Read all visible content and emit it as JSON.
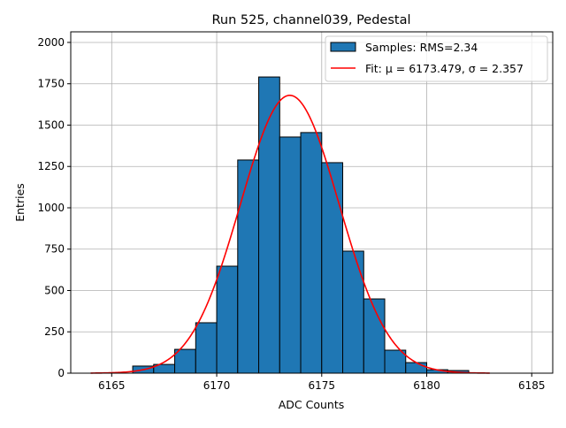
{
  "chart_data": {
    "type": "bar",
    "title": "Run 525, channel039, Pedestal",
    "xlabel": "ADC Counts",
    "ylabel": "Entries",
    "xlim": [
      6163.05,
      6186.0
    ],
    "ylim": [
      0,
      2064
    ],
    "xticks": [
      6165,
      6170,
      6175,
      6180,
      6185
    ],
    "yticks": [
      0,
      250,
      500,
      750,
      1000,
      1250,
      1500,
      1750,
      2000
    ],
    "grid": true,
    "legend_position": "top-right",
    "bin_width": 1,
    "bin_edges_start": [
      6166,
      6167,
      6168,
      6169,
      6170,
      6171,
      6172,
      6173,
      6174,
      6175,
      6176,
      6177,
      6178,
      6179,
      6180,
      6181
    ],
    "values": [
      43,
      53,
      144,
      305,
      647,
      1289,
      1791,
      1428,
      1455,
      1273,
      738,
      449,
      139,
      64,
      21,
      16
    ],
    "bar_color": "#1f77b4",
    "fit": {
      "amplitude": 1680,
      "mu": 6173.479,
      "sigma": 2.357,
      "x_range": [
        6164,
        6183
      ],
      "color": "#ff0000"
    },
    "legend": [
      {
        "label": "Samples: RMS=2.34",
        "kind": "patch"
      },
      {
        "label": "Fit: μ = 6173.479, σ = 2.357",
        "kind": "line"
      }
    ]
  }
}
